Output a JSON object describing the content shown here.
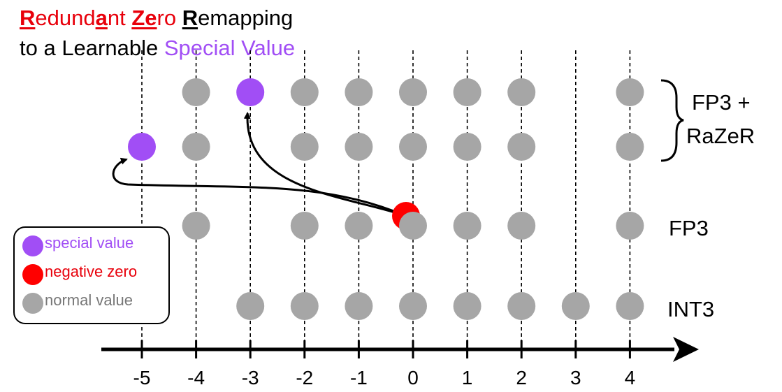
{
  "title": {
    "line1": [
      {
        "text": "R",
        "style": "red-key"
      },
      {
        "text": "edund",
        "style": "red"
      },
      {
        "text": "a",
        "style": "red-key"
      },
      {
        "text": "nt ",
        "style": "red"
      },
      {
        "text": "Ze",
        "style": "red-key"
      },
      {
        "text": "ro ",
        "style": "red"
      },
      {
        "text": "R",
        "style": "black-key"
      },
      {
        "text": "emapping",
        "style": "plain"
      }
    ],
    "line2": [
      {
        "text": "to a Learnable ",
        "style": "plain"
      },
      {
        "text": "Special Value",
        "style": "purple"
      }
    ]
  },
  "colors": {
    "special": "#a14ef5",
    "negative_zero": "#ff0000",
    "normal": "#a6a6a6",
    "title_red": "#e8000b"
  },
  "axis": {
    "ticks": [
      -5,
      -4,
      -3,
      -2,
      -1,
      0,
      1,
      2,
      3,
      4
    ],
    "tick_labels": [
      "-5",
      "-4",
      "-3",
      "-2",
      "-1",
      "0",
      "1",
      "2",
      "3",
      "4"
    ]
  },
  "rows": [
    {
      "id": "fp3-razer-positive",
      "points": [
        {
          "v": -4,
          "kind": "normal"
        },
        {
          "v": -3,
          "kind": "special"
        },
        {
          "v": -2,
          "kind": "normal"
        },
        {
          "v": -1,
          "kind": "normal"
        },
        {
          "v": 0,
          "kind": "normal"
        },
        {
          "v": 1,
          "kind": "normal"
        },
        {
          "v": 2,
          "kind": "normal"
        },
        {
          "v": 4,
          "kind": "normal"
        }
      ]
    },
    {
      "id": "fp3-razer-negative",
      "points": [
        {
          "v": -5,
          "kind": "special"
        },
        {
          "v": -4,
          "kind": "normal"
        },
        {
          "v": -2,
          "kind": "normal"
        },
        {
          "v": -1,
          "kind": "normal"
        },
        {
          "v": 0,
          "kind": "normal"
        },
        {
          "v": 1,
          "kind": "normal"
        },
        {
          "v": 2,
          "kind": "normal"
        },
        {
          "v": 4,
          "kind": "normal"
        }
      ]
    },
    {
      "id": "fp3",
      "label": "FP3",
      "points": [
        {
          "v": -4,
          "kind": "normal"
        },
        {
          "v": -2,
          "kind": "normal"
        },
        {
          "v": -1,
          "kind": "normal"
        },
        {
          "v": 0,
          "kind": "negative_zero"
        },
        {
          "v": 0,
          "kind": "normal"
        },
        {
          "v": 1,
          "kind": "normal"
        },
        {
          "v": 2,
          "kind": "normal"
        },
        {
          "v": 4,
          "kind": "normal"
        }
      ]
    },
    {
      "id": "int3",
      "label": "INT3",
      "points": [
        {
          "v": -3,
          "kind": "normal"
        },
        {
          "v": -2,
          "kind": "normal"
        },
        {
          "v": -1,
          "kind": "normal"
        },
        {
          "v": 0,
          "kind": "normal"
        },
        {
          "v": 1,
          "kind": "normal"
        },
        {
          "v": 2,
          "kind": "normal"
        },
        {
          "v": 3,
          "kind": "normal"
        },
        {
          "v": 4,
          "kind": "normal"
        }
      ]
    }
  ],
  "group_label": {
    "line1": "FP3 +",
    "line2": "RaZeR"
  },
  "legend": [
    {
      "kind": "special",
      "label": "special value"
    },
    {
      "kind": "negative_zero",
      "label": "negative zero"
    },
    {
      "kind": "normal",
      "label": "normal value"
    }
  ],
  "remap_arrows": [
    {
      "from": 0,
      "to": -3,
      "target_row": "fp3-razer-positive"
    },
    {
      "from": 0,
      "to": -5,
      "target_row": "fp3-razer-negative"
    }
  ]
}
